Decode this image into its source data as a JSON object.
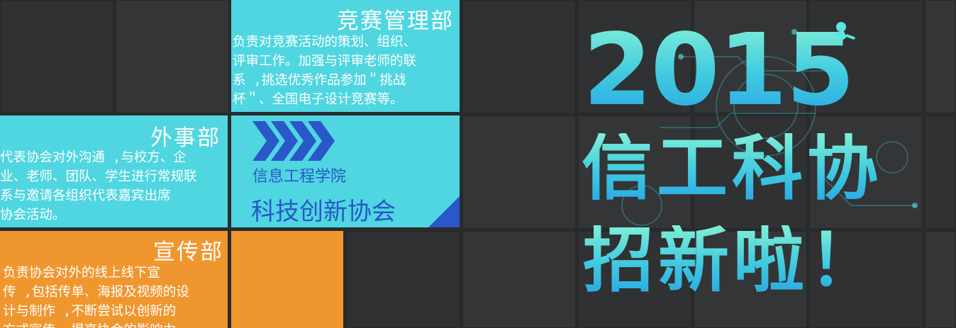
{
  "departments": {
    "competition": {
      "title": "竞赛管理部",
      "body": "负责对竞赛活动的策划、组织、\n评审工作。加强与评审老师的联\n系 ,挑选优秀作品参加＂挑战\n杯＂、全国电子设计竞赛等。"
    },
    "external": {
      "title": "外事部",
      "body": "代表协会对外沟通 ,与校方、企\n业、老师、团队、学生进行常规联\n系与邀请各组织代表嘉宾出席\n协会活动。"
    },
    "publicity": {
      "title": "宣传部",
      "body": "负责协会对外的线上线下宣\n传 ,包括传单、海报及视频的设\n计与制作 ,不断尝试以创新的\n方式宣传 ,提高协会的影响力"
    }
  },
  "logo": {
    "school": "信息工程学院",
    "association": "科技创新协会"
  },
  "headline": {
    "year": "2015",
    "line2": "信工科协",
    "line3": "招新啦！"
  },
  "colors": {
    "cyan_panel": "#4fd6e0",
    "orange_panel": "#f0962f",
    "logo_blue": "#2a58c8",
    "background": "#2a2b2d"
  },
  "icons": {
    "chevrons": "chevron-arrows-icon",
    "corner": "corner-triangle-icon",
    "astronaut": "astronaut-icon"
  }
}
